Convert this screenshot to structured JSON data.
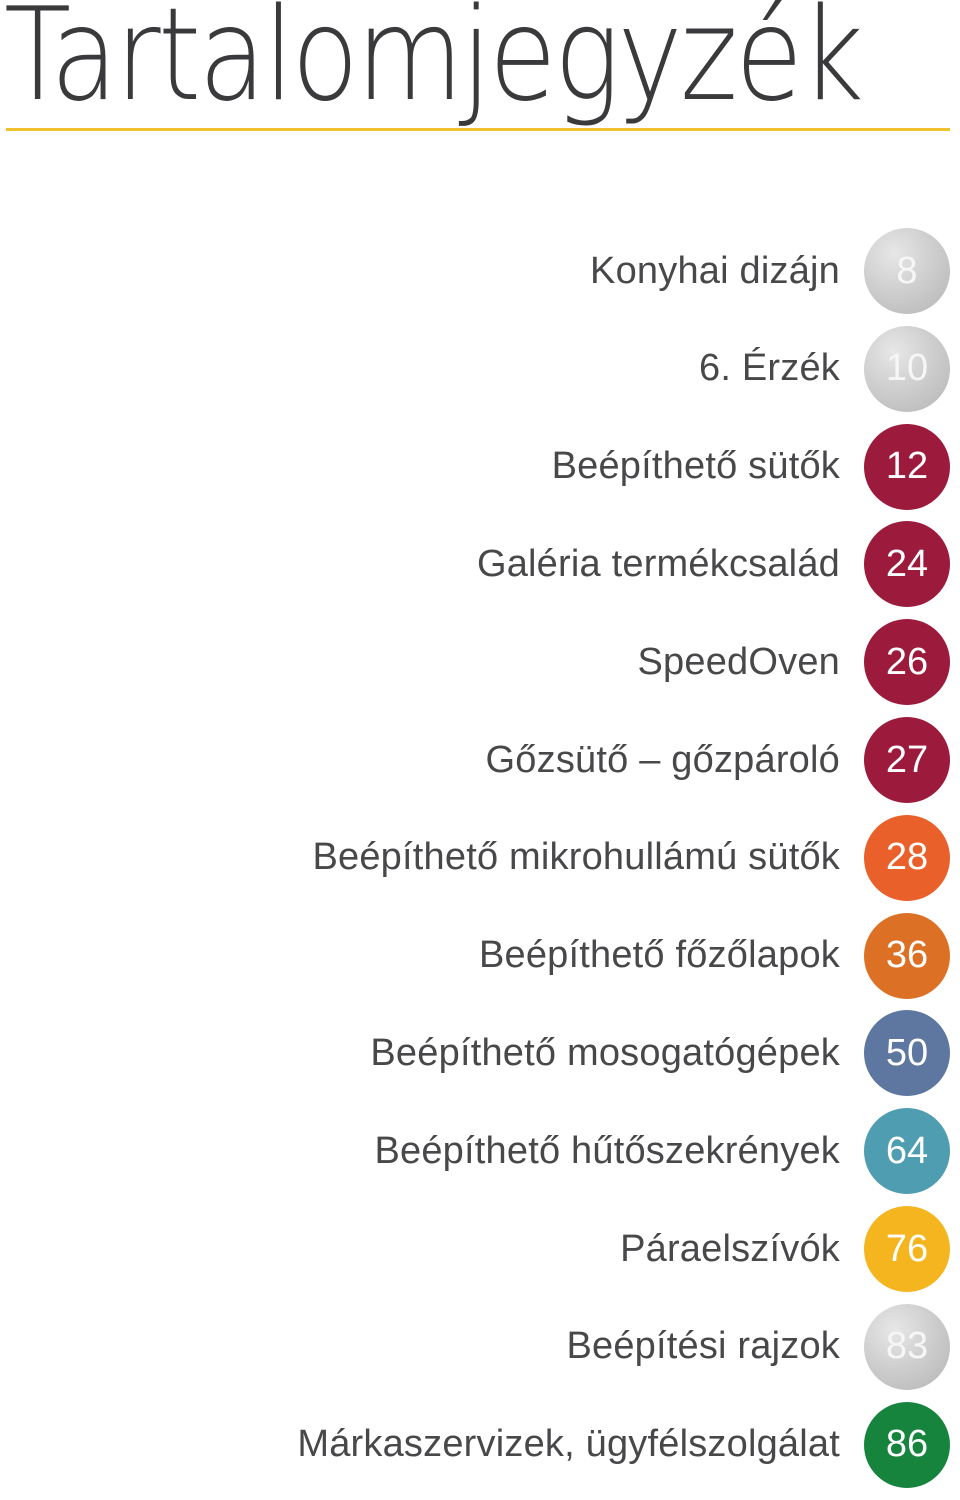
{
  "title": "Tartalomjegyzék",
  "colors": {
    "rule": "#f2c12e",
    "silver": "#c8c8c8",
    "burgundy": "#9c1a3c",
    "orange_red": "#e9602a",
    "orange": "#dc7126",
    "slate_blue": "#5d77a0",
    "teal": "#4e9db0",
    "yellow": "#f5b51e",
    "green": "#17843e"
  },
  "toc": [
    {
      "label": "Konyhai dizájn",
      "page": "8",
      "color": "silver"
    },
    {
      "label": "6. Érzék",
      "page": "10",
      "color": "silver"
    },
    {
      "label": "Beépíthető sütők",
      "page": "12",
      "color": "#9c1a3c"
    },
    {
      "label": "Galéria termékcsalád",
      "page": "24",
      "color": "#9c1a3c"
    },
    {
      "label": "SpeedOven",
      "page": "26",
      "color": "#9c1a3c"
    },
    {
      "label": "Gőzsütő – gőzpároló",
      "page": "27",
      "color": "#9c1a3c"
    },
    {
      "label": "Beépíthető mikrohullámú sütők",
      "page": "28",
      "color": "#e9602a"
    },
    {
      "label": "Beépíthető főzőlapok",
      "page": "36",
      "color": "#dc7126"
    },
    {
      "label": "Beépíthető mosogatógépek",
      "page": "50",
      "color": "#5d77a0"
    },
    {
      "label": "Beépíthető hűtőszekrények",
      "page": "64",
      "color": "#4e9db0"
    },
    {
      "label": "Páraelszívók",
      "page": "76",
      "color": "#f5b51e"
    },
    {
      "label": "Beépítési rajzok",
      "page": "83",
      "color": "silver"
    },
    {
      "label": "Márkaszervizek, ügyfélszolgálat",
      "page": "86",
      "color": "#17843e"
    }
  ]
}
